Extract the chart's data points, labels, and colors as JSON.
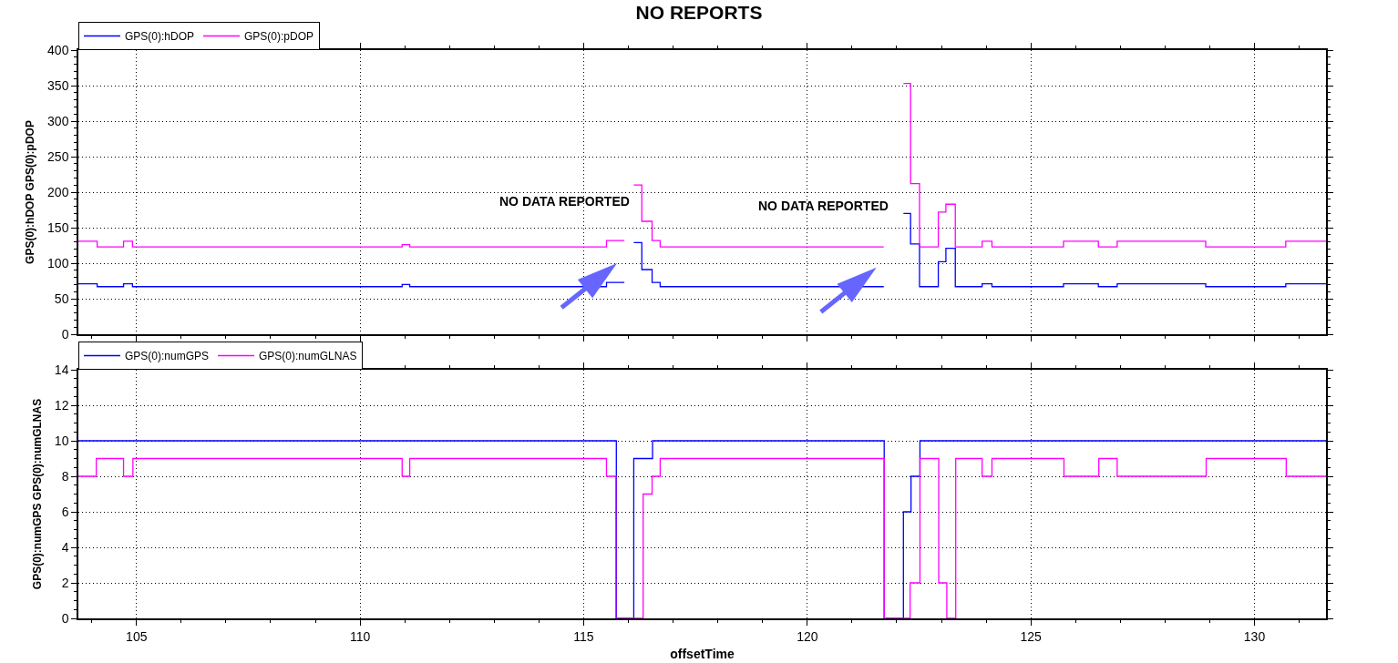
{
  "chart_data": [
    {
      "type": "step",
      "title": "NO REPORTS",
      "ylabel": "GPS(0):hDOP GPS(0):pDOP",
      "x": [
        103.7,
        104.12,
        104.71,
        104.91,
        110.94,
        111.11,
        115.51,
        115.91,
        115.92,
        116.12,
        116.3,
        116.53,
        116.71,
        121.71,
        121.72,
        122.15,
        122.31,
        122.51,
        122.93,
        123.1,
        123.31,
        123.91,
        124.13,
        125.73,
        126.51,
        126.93,
        128.91,
        130.7,
        131.6
      ],
      "series": [
        {
          "name": "GPS(0):hDOP",
          "color": "#0000ff",
          "values": [
            71,
            67,
            71,
            67,
            70,
            67,
            73,
            73,
            null,
            129,
            91,
            73,
            67,
            67,
            null,
            170,
            127,
            67,
            102,
            121,
            67,
            71,
            67,
            71,
            67,
            71,
            67,
            71,
            71
          ]
        },
        {
          "name": "GPS(0):pDOP",
          "color": "#ff00ff",
          "values": [
            131,
            123,
            131,
            123,
            126,
            123,
            132,
            132,
            null,
            210,
            159,
            132,
            123,
            123,
            null,
            353,
            212,
            123,
            172,
            183,
            123,
            131,
            123,
            131,
            123,
            131,
            123,
            131,
            131
          ]
        }
      ],
      "xlim": [
        103.7,
        131.6
      ],
      "xticks": [
        {
          "value": 104,
          "label": null
        },
        105,
        {
          "value": 106,
          "label": null
        },
        {
          "value": 107,
          "label": null
        },
        {
          "value": 108,
          "label": null
        },
        {
          "value": 109,
          "label": null
        },
        110,
        {
          "value": 111,
          "label": null
        },
        {
          "value": 112,
          "label": null
        },
        {
          "value": 113,
          "label": null
        },
        {
          "value": 114,
          "label": null
        },
        115,
        {
          "value": 116,
          "label": null
        },
        {
          "value": 117,
          "label": null
        },
        {
          "value": 118,
          "label": null
        },
        {
          "value": 119,
          "label": null
        },
        120,
        {
          "value": 121,
          "label": null
        },
        {
          "value": 122,
          "label": null
        },
        {
          "value": 123,
          "label": null
        },
        {
          "value": 124,
          "label": null
        },
        125,
        {
          "value": 126,
          "label": null
        },
        {
          "value": 127,
          "label": null
        },
        {
          "value": 128,
          "label": null
        },
        {
          "value": 129,
          "label": null
        },
        130,
        {
          "value": 131,
          "label": null
        }
      ],
      "ylim": [
        0,
        400
      ],
      "yticks": [
        0,
        {
          "value": 10,
          "label": null
        },
        {
          "value": 20,
          "label": null
        },
        {
          "value": 30,
          "label": null
        },
        {
          "value": 40,
          "label": null
        },
        50,
        {
          "value": 60,
          "label": null
        },
        {
          "value": 70,
          "label": null
        },
        {
          "value": 80,
          "label": null
        },
        {
          "value": 90,
          "label": null
        },
        100,
        {
          "value": 110,
          "label": null
        },
        {
          "value": 120,
          "label": null
        },
        {
          "value": 130,
          "label": null
        },
        {
          "value": 140,
          "label": null
        },
        150,
        {
          "value": 160,
          "label": null
        },
        {
          "value": 170,
          "label": null
        },
        {
          "value": 180,
          "label": null
        },
        {
          "value": 190,
          "label": null
        },
        200,
        {
          "value": 210,
          "label": null
        },
        {
          "value": 220,
          "label": null
        },
        {
          "value": 230,
          "label": null
        },
        {
          "value": 240,
          "label": null
        },
        250,
        {
          "value": 260,
          "label": null
        },
        {
          "value": 270,
          "label": null
        },
        {
          "value": 280,
          "label": null
        },
        {
          "value": 290,
          "label": null
        },
        300,
        {
          "value": 310,
          "label": null
        },
        {
          "value": 320,
          "label": null
        },
        {
          "value": 330,
          "label": null
        },
        {
          "value": 340,
          "label": null
        },
        350,
        {
          "value": 360,
          "label": null
        },
        {
          "value": 370,
          "label": null
        },
        {
          "value": 380,
          "label": null
        },
        {
          "value": 390,
          "label": null
        },
        400
      ],
      "tick_labels": "y",
      "grid": true,
      "legend": "top left",
      "annotations": [
        "NO DATA REPORTED",
        "NO DATA REPORTED"
      ]
    },
    {
      "type": "step",
      "xlabel": "offsetTime",
      "ylabel": "GPS(0):numGPS GPS(0):numGLNAS",
      "series": [
        {
          "name": "GPS(0):numGPS",
          "color": "#0000ff",
          "x": [
            103.7,
            115.73,
            116.12,
            116.54,
            121.72,
            122.15,
            122.32,
            122.52,
            131.6
          ],
          "values": [
            10,
            0,
            9,
            10,
            0,
            6,
            8,
            10,
            10
          ]
        },
        {
          "name": "GPS(0):numGLNAS",
          "color": "#ff00ff",
          "x": [
            103.7,
            104.1,
            104.71,
            104.92,
            110.94,
            111.11,
            115.51,
            115.72,
            116.33,
            116.53,
            116.71,
            121.72,
            122.3,
            122.52,
            122.94,
            123.12,
            123.32,
            123.91,
            124.13,
            125.74,
            126.52,
            126.93,
            128.92,
            130.71,
            131.6
          ],
          "values": [
            8,
            9,
            8,
            9,
            8,
            9,
            8,
            0,
            7,
            8,
            9,
            0,
            2,
            9,
            2,
            0,
            9,
            8,
            9,
            8,
            9,
            8,
            9,
            8,
            8
          ]
        }
      ],
      "xlim": [
        103.7,
        131.6
      ],
      "xticks": [
        {
          "value": 104,
          "label": null
        },
        105,
        {
          "value": 106,
          "label": null
        },
        {
          "value": 107,
          "label": null
        },
        {
          "value": 108,
          "label": null
        },
        {
          "value": 109,
          "label": null
        },
        110,
        {
          "value": 111,
          "label": null
        },
        {
          "value": 112,
          "label": null
        },
        {
          "value": 113,
          "label": null
        },
        {
          "value": 114,
          "label": null
        },
        115,
        {
          "value": 116,
          "label": null
        },
        {
          "value": 117,
          "label": null
        },
        {
          "value": 118,
          "label": null
        },
        {
          "value": 119,
          "label": null
        },
        120,
        {
          "value": 121,
          "label": null
        },
        {
          "value": 122,
          "label": null
        },
        {
          "value": 123,
          "label": null
        },
        {
          "value": 124,
          "label": null
        },
        125,
        {
          "value": 126,
          "label": null
        },
        {
          "value": 127,
          "label": null
        },
        {
          "value": 128,
          "label": null
        },
        {
          "value": 129,
          "label": null
        },
        130,
        {
          "value": 131,
          "label": null
        }
      ],
      "ylim": [
        0,
        14
      ],
      "yticks": [
        0,
        {
          "value": 0.5,
          "label": null
        },
        {
          "value": 1,
          "label": null
        },
        {
          "value": 1.5,
          "label": null
        },
        2,
        {
          "value": 2.5,
          "label": null
        },
        {
          "value": 3,
          "label": null
        },
        {
          "value": 3.5,
          "label": null
        },
        4,
        {
          "value": 4.5,
          "label": null
        },
        {
          "value": 5,
          "label": null
        },
        {
          "value": 5.5,
          "label": null
        },
        6,
        {
          "value": 6.5,
          "label": null
        },
        {
          "value": 7,
          "label": null
        },
        {
          "value": 7.5,
          "label": null
        },
        8,
        {
          "value": 8.5,
          "label": null
        },
        {
          "value": 9,
          "label": null
        },
        {
          "value": 9.5,
          "label": null
        },
        10,
        {
          "value": 10.5,
          "label": null
        },
        {
          "value": 11,
          "label": null
        },
        {
          "value": 11.5,
          "label": null
        },
        12,
        {
          "value": 12.5,
          "label": null
        },
        {
          "value": 13,
          "label": null
        },
        {
          "value": 13.5,
          "label": null
        },
        14
      ],
      "grid": true,
      "legend": "top left"
    }
  ]
}
